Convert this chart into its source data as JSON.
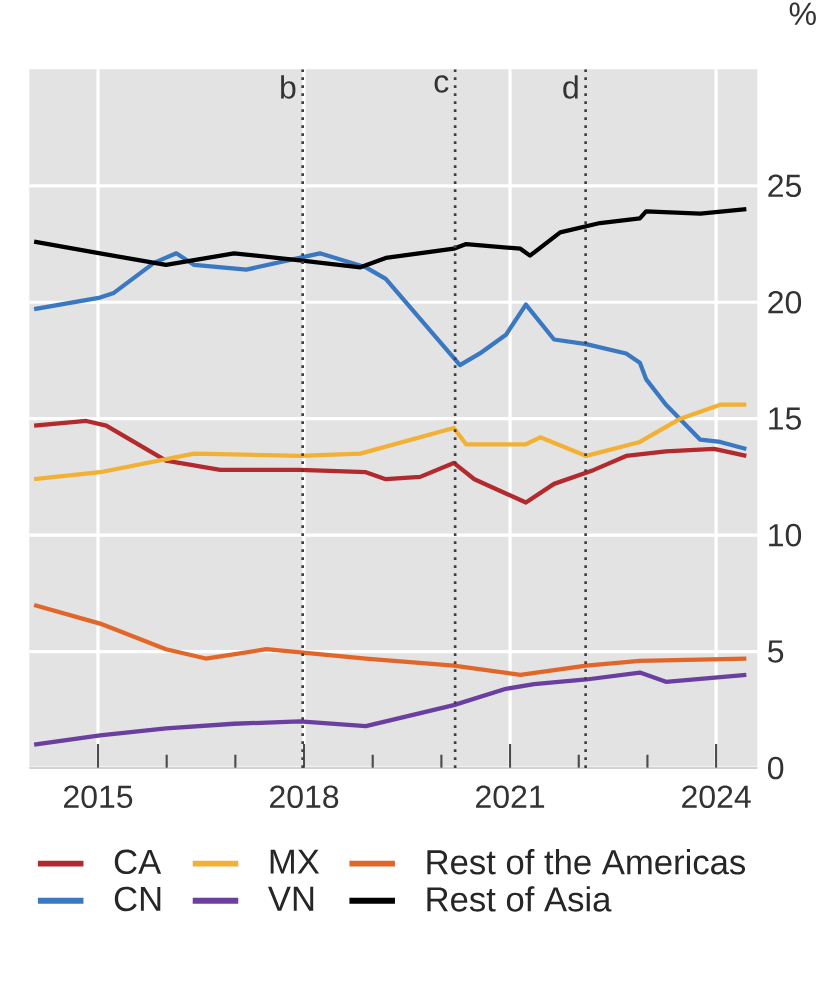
{
  "chart_data": {
    "type": "line",
    "ylabel": "%",
    "xlim": [
      2014,
      2024.6
    ],
    "ylim": [
      0,
      30
    ],
    "xticks": [
      2015,
      {
        "value": 2016,
        "label": null
      },
      {
        "value": 2017,
        "label": null
      },
      2018,
      {
        "value": 2019,
        "label": null
      },
      {
        "value": 2020,
        "label": null
      },
      2021,
      {
        "value": 2022,
        "label": null
      },
      {
        "value": 2023,
        "label": null
      },
      2024
    ],
    "yticks": [
      0,
      5,
      10,
      15,
      20,
      25
    ],
    "grid": true,
    "legend": "bottom",
    "line_style": "solid",
    "marker": "none",
    "ref_lines": [
      {
        "axis": "x",
        "value": 2017.98,
        "label": "b",
        "line_style": "dotted"
      },
      {
        "axis": "x",
        "value": 2020.2,
        "label": "c",
        "line_style": "dotted"
      },
      {
        "axis": "x",
        "value": 2022.1,
        "label": "d",
        "line_style": "dotted"
      }
    ],
    "series": [
      {
        "name": "CA",
        "color": "#b22a2e",
        "x": [
          2014.07,
          2014.83,
          2015.12,
          2015.99,
          2016.78,
          2017.94,
          2018.9,
          2019.19,
          2019.69,
          2020.18,
          2020.48,
          2021.23,
          2021.64,
          2022.22,
          2022.69,
          2023.27,
          2023.97,
          2024.44
        ],
        "values": [
          14.7,
          14.9,
          14.7,
          13.2,
          12.8,
          12.8,
          12.7,
          12.4,
          12.5,
          13.1,
          12.4,
          11.4,
          12.2,
          12.8,
          13.4,
          13.6,
          13.7,
          13.4
        ]
      },
      {
        "name": "CN",
        "color": "#3a78c2",
        "x": [
          2014.07,
          2015.03,
          2015.23,
          2015.82,
          2016.14,
          2016.4,
          2017.16,
          2018.23,
          2018.9,
          2019.19,
          2020.27,
          2020.56,
          2020.94,
          2021.23,
          2021.64,
          2022.11,
          2022.69,
          2022.89,
          2022.98,
          2023.27,
          2023.77,
          2024.06,
          2024.44
        ],
        "values": [
          19.7,
          20.2,
          20.4,
          21.7,
          22.1,
          21.6,
          21.4,
          22.1,
          21.5,
          21.0,
          17.3,
          17.8,
          18.6,
          19.9,
          18.4,
          18.2,
          17.8,
          17.4,
          16.7,
          15.6,
          14.1,
          14.0,
          13.7
        ]
      },
      {
        "name": "MX",
        "color": "#f2b134",
        "x": [
          2014.07,
          2015.03,
          2016.4,
          2017.94,
          2018.82,
          2020.18,
          2020.36,
          2021.23,
          2021.44,
          2022.11,
          2022.89,
          2023.48,
          2024.06,
          2024.44
        ],
        "values": [
          12.4,
          12.7,
          13.5,
          13.4,
          13.5,
          14.6,
          13.9,
          13.9,
          14.2,
          13.4,
          14.0,
          15.0,
          15.6,
          15.6
        ]
      },
      {
        "name": "VN",
        "color": "#6b3fa0",
        "x": [
          2014.07,
          2015.03,
          2015.99,
          2016.98,
          2017.94,
          2018.9,
          2020.18,
          2020.94,
          2021.35,
          2022.11,
          2022.89,
          2023.27,
          2024.44
        ],
        "values": [
          1.0,
          1.4,
          1.7,
          1.9,
          2.0,
          1.8,
          2.7,
          3.4,
          3.6,
          3.8,
          4.1,
          3.7,
          4.0
        ]
      },
      {
        "name": "Rest of the Americas",
        "color": "#e2662a",
        "x": [
          2014.07,
          2015.03,
          2015.99,
          2016.57,
          2017.45,
          2018.9,
          2020.18,
          2021.15,
          2022.11,
          2022.89,
          2024.44
        ],
        "values": [
          7.0,
          6.2,
          5.1,
          4.7,
          5.1,
          4.7,
          4.4,
          4.0,
          4.4,
          4.6,
          4.7
        ]
      },
      {
        "name": "Rest of Asia",
        "color": "#000000",
        "x": [
          2014.07,
          2015.03,
          2015.99,
          2016.98,
          2017.94,
          2018.82,
          2019.19,
          2020.18,
          2020.36,
          2021.15,
          2021.29,
          2021.73,
          2022.31,
          2022.89,
          2022.98,
          2023.77,
          2024.44
        ],
        "values": [
          22.6,
          22.1,
          21.6,
          22.1,
          21.8,
          21.5,
          21.9,
          22.3,
          22.5,
          22.3,
          22.0,
          23.0,
          23.4,
          23.6,
          23.9,
          23.8,
          24.0
        ]
      }
    ]
  }
}
